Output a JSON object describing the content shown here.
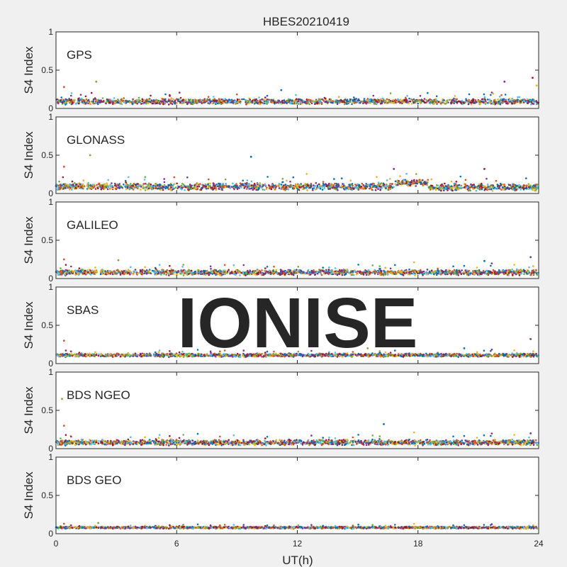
{
  "chart_data": {
    "type": "scatter",
    "title": "HBES20210419",
    "xlabel": "UT(h)",
    "ylabel": "S4 Index",
    "xlim": [
      0,
      24
    ],
    "ylim": [
      0,
      1
    ],
    "xticks": [
      "0",
      "6",
      "12",
      "18",
      "24"
    ],
    "yticks": [
      "0",
      "0.5",
      "1"
    ],
    "watermark": "IONISE",
    "grid": false,
    "colors": [
      "#0072BD",
      "#D95319",
      "#EDB120",
      "#7E2F8E",
      "#77AC30",
      "#4DBEEE",
      "#A2142F"
    ],
    "panels": [
      {
        "name": "GPS",
        "baseline": 0.09,
        "spread": 0.04,
        "ylabel": "S4 Index",
        "segments": [
          {
            "hours": [
              0,
              24
            ],
            "level": 0.09
          }
        ],
        "outliers": [
          {
            "x": 0.4,
            "y": 0.28
          },
          {
            "x": 2.0,
            "y": 0.35
          },
          {
            "x": 11.2,
            "y": 0.24
          },
          {
            "x": 22.3,
            "y": 0.35
          },
          {
            "x": 23.7,
            "y": 0.4
          },
          {
            "x": 23.9,
            "y": 0.3
          }
        ]
      },
      {
        "name": "GLONASS",
        "baseline": 0.09,
        "spread": 0.05,
        "ylabel": "S4 Index",
        "segments": [
          {
            "hours": [
              0,
              16.8
            ],
            "level": 0.09
          },
          {
            "hours": [
              16.8,
              18.5
            ],
            "level": 0.14
          },
          {
            "hours": [
              18.5,
              24
            ],
            "level": 0.08
          }
        ],
        "outliers": [
          {
            "x": 0.4,
            "y": 0.35
          },
          {
            "x": 1.7,
            "y": 0.5
          },
          {
            "x": 9.7,
            "y": 0.48
          },
          {
            "x": 16.8,
            "y": 0.32
          },
          {
            "x": 21.3,
            "y": 0.32
          }
        ]
      },
      {
        "name": "GALILEO",
        "baseline": 0.08,
        "spread": 0.04,
        "ylabel": "S4 Index",
        "segments": [
          {
            "hours": [
              0,
              24
            ],
            "level": 0.08
          }
        ],
        "outliers": [
          {
            "x": 0.4,
            "y": 0.25
          },
          {
            "x": 3.1,
            "y": 0.24
          },
          {
            "x": 21.3,
            "y": 0.23
          },
          {
            "x": 23.6,
            "y": 0.28
          }
        ]
      },
      {
        "name": "SBAS",
        "baseline": 0.11,
        "spread": 0.025,
        "ylabel": "S4 Index",
        "segments": [
          {
            "hours": [
              0,
              24
            ],
            "level": 0.11
          }
        ],
        "outliers": [
          {
            "x": 0.4,
            "y": 0.3
          },
          {
            "x": 15.5,
            "y": 0.2
          },
          {
            "x": 20.3,
            "y": 0.2
          },
          {
            "x": 23.6,
            "y": 0.32
          }
        ]
      },
      {
        "name": "BDS NGEO",
        "baseline": 0.08,
        "spread": 0.04,
        "ylabel": "S4 Index",
        "segments": [
          {
            "hours": [
              0,
              24
            ],
            "level": 0.08
          }
        ],
        "outliers": [
          {
            "x": 0.4,
            "y": 0.3
          },
          {
            "x": 0.3,
            "y": 0.65
          },
          {
            "x": 16.3,
            "y": 0.32
          },
          {
            "x": 23.6,
            "y": 0.2
          }
        ]
      },
      {
        "name": "BDS GEO",
        "baseline": 0.08,
        "spread": 0.015,
        "ylabel": "S4 Index",
        "segments": [
          {
            "hours": [
              0,
              24
            ],
            "level": 0.08
          }
        ],
        "outliers": [
          {
            "x": 0.4,
            "y": 0.13
          },
          {
            "x": 2.1,
            "y": 0.14
          }
        ]
      }
    ]
  }
}
